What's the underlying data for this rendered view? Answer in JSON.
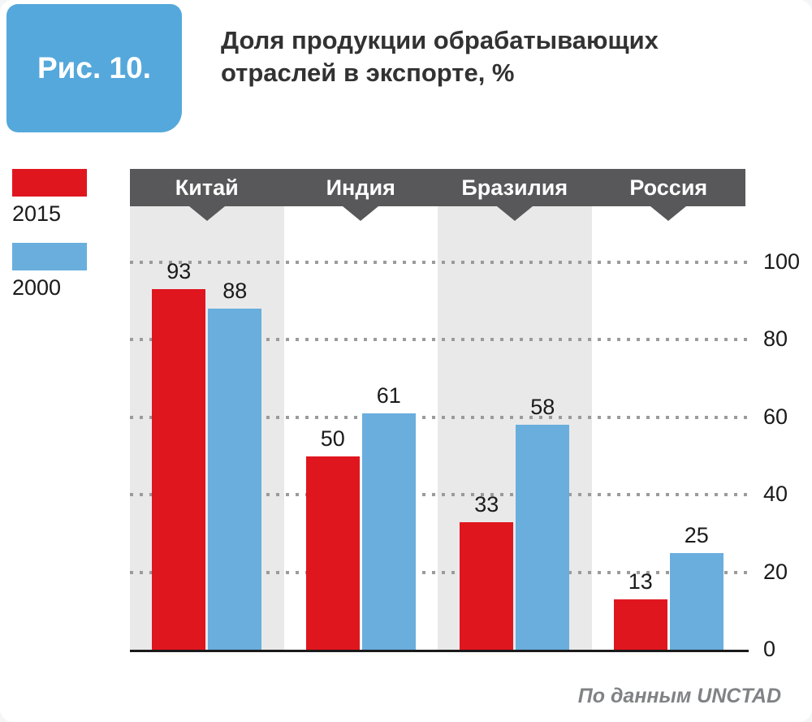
{
  "figure": {
    "label": "Рис. 10.",
    "title": "Доля продукции обрабатывающих отраслей в экспорте, %",
    "source": "По данным UNCTAD"
  },
  "legend": [
    {
      "label": "2015",
      "color": "#e0161f"
    },
    {
      "label": "2000",
      "color": "#69aedd"
    }
  ],
  "chart_data": {
    "type": "bar",
    "categories": [
      "Китай",
      "Индия",
      "Бразилия",
      "Россия"
    ],
    "series": [
      {
        "name": "2015",
        "color": "#e0161f",
        "values": [
          93,
          50,
          33,
          13
        ]
      },
      {
        "name": "2000",
        "color": "#69aedd",
        "values": [
          88,
          61,
          58,
          25
        ]
      }
    ],
    "title": "Доля продукции обрабатывающих отраслей в экспорте, %",
    "xlabel": "",
    "ylabel": "",
    "ylim": [
      0,
      100
    ],
    "yticks": [
      0,
      20,
      40,
      60,
      80,
      100
    ],
    "grid": "dotted-horizontal",
    "legend_position": "left",
    "stripe_color": "#e9e9e9",
    "header_bar_color": "#58585a"
  }
}
